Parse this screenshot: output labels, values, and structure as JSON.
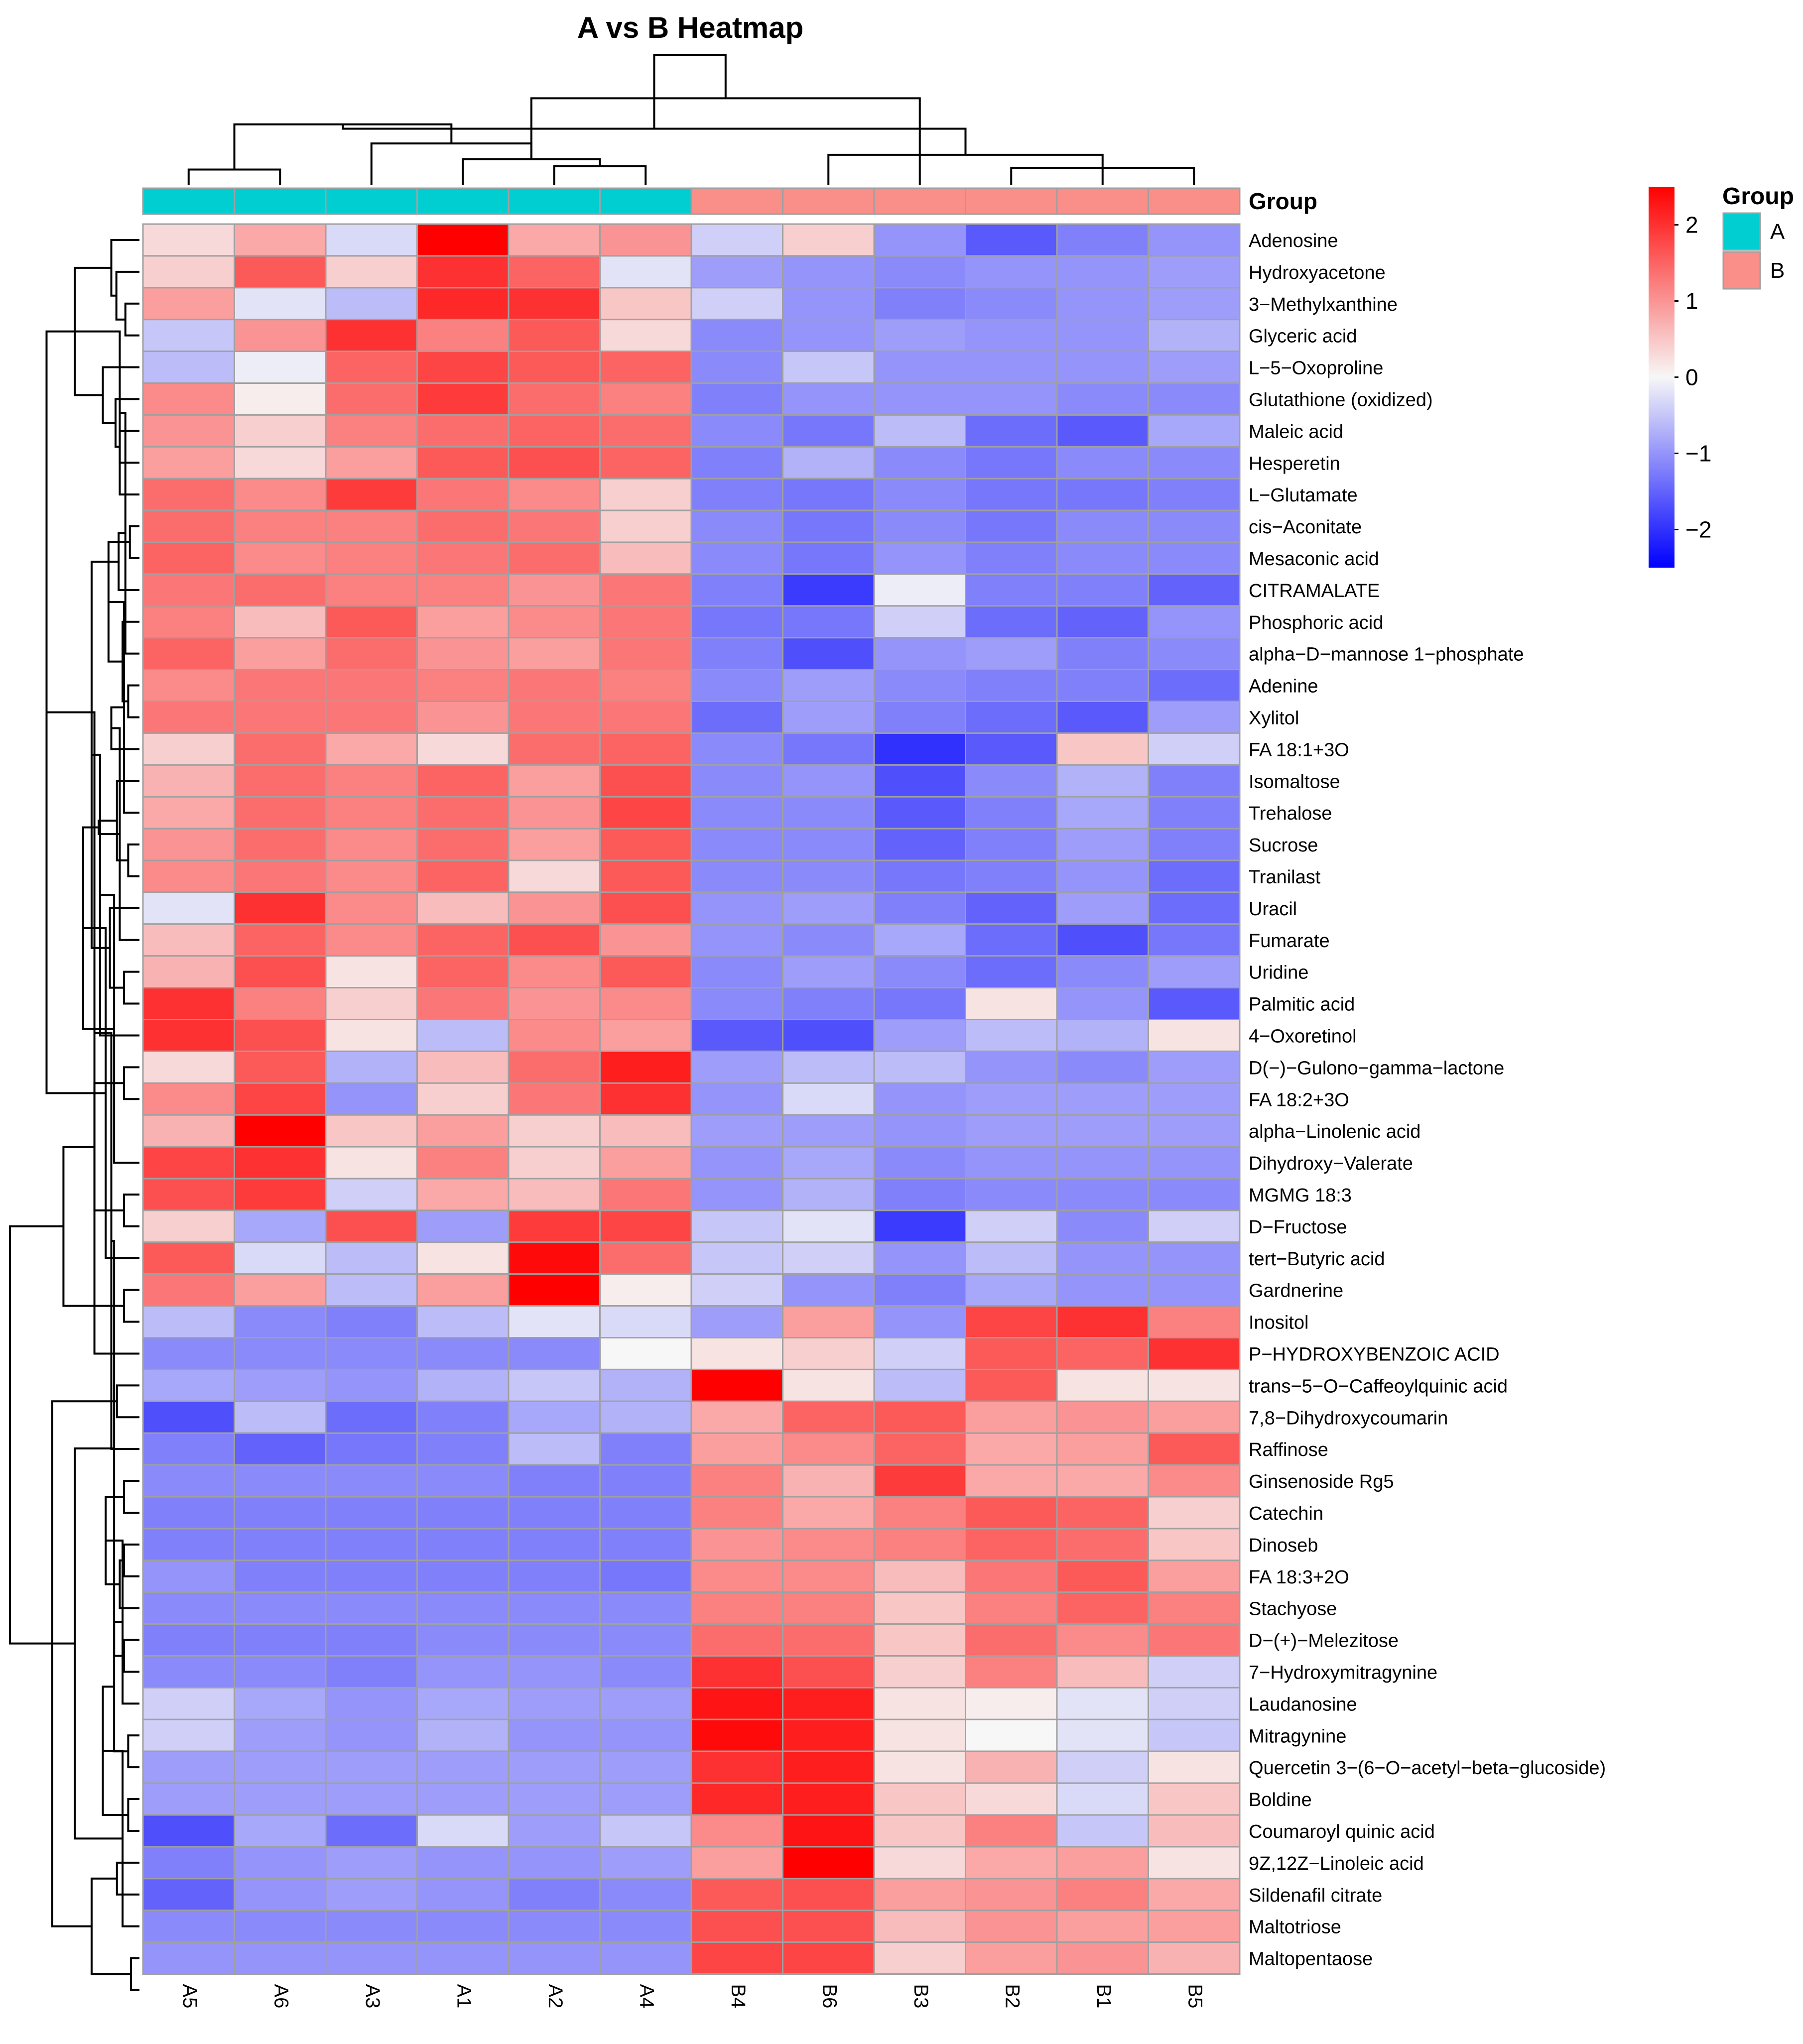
{
  "chart_data": {
    "type": "heatmap",
    "title": "A vs B Heatmap",
    "columns": [
      "A5",
      "A6",
      "A3",
      "A1",
      "A2",
      "A4",
      "B4",
      "B6",
      "B3",
      "B2",
      "B1",
      "B5"
    ],
    "column_groups": [
      "A",
      "A",
      "A",
      "A",
      "A",
      "A",
      "B",
      "B",
      "B",
      "B",
      "B",
      "B"
    ],
    "rows": [
      "Adenosine",
      "Hydroxyacetone",
      "3−Methylxanthine",
      "Glyceric acid",
      "L−5−Oxoproline",
      "Glutathione (oxidized)",
      "Maleic acid",
      "Hesperetin",
      "L−Glutamate",
      "cis−Aconitate",
      "Mesaconic acid",
      "CITRAMALATE",
      "Phosphoric acid",
      "alpha−D−mannose 1−phosphate",
      "Adenine",
      "Xylitol",
      "FA 18:1+3O",
      "Isomaltose",
      "Trehalose",
      "Sucrose",
      "Tranilast",
      "Uracil",
      "Fumarate",
      "Uridine",
      "Palmitic acid",
      "4−Oxoretinol",
      "D(−)−Gulono−gamma−lactone",
      "FA 18:2+3O",
      "alpha−Linolenic acid",
      "Dihydroxy−Valerate",
      "MGMG 18:3",
      "D−Fructose",
      "tert−Butyric acid",
      "Gardnerine",
      "Inositol",
      "P−HYDROXYBENZOIC ACID",
      "trans−5−O−Caffeoylquinic acid",
      "7,8−Dihydroxycoumarin",
      "Raffinose",
      "Ginsenoside Rg5",
      "Catechin",
      "Dinoseb",
      "FA 18:3+2O",
      "Stachyose",
      "D−(+)−Melezitose",
      "7−Hydroxymitragynine",
      "Laudanosine",
      "Mitragynine",
      "Quercetin 3−(6−O−acetyl−beta−glucoside)",
      "Boldine",
      "Coumaroyl quinic acid",
      "9Z,12Z−Linoleic acid",
      "Sildenafil citrate",
      "Maltotriose",
      "Maltopentaose"
    ],
    "values": [
      [
        0.3,
        0.8,
        -0.3,
        2.5,
        0.8,
        1.0,
        -0.4,
        0.4,
        -1.0,
        -1.6,
        -1.2,
        -1.0
      ],
      [
        0.4,
        1.6,
        0.4,
        2.0,
        1.5,
        -0.2,
        -0.9,
        -1.0,
        -1.1,
        -1.0,
        -1.0,
        -0.9
      ],
      [
        0.9,
        -0.2,
        -0.6,
        2.1,
        2.0,
        0.5,
        -0.4,
        -1.0,
        -1.2,
        -1.1,
        -1.0,
        -0.9
      ],
      [
        -0.5,
        1.0,
        2.0,
        1.2,
        1.6,
        0.3,
        -1.1,
        -1.0,
        -0.9,
        -1.0,
        -1.0,
        -0.7
      ],
      [
        -0.6,
        -0.1,
        1.5,
        1.8,
        1.6,
        1.5,
        -1.1,
        -0.5,
        -1.0,
        -1.0,
        -1.0,
        -0.9
      ],
      [
        1.1,
        0.1,
        1.4,
        1.9,
        1.4,
        1.2,
        -1.2,
        -1.0,
        -1.0,
        -1.0,
        -1.1,
        -1.1
      ],
      [
        1.0,
        0.4,
        1.2,
        1.4,
        1.5,
        1.4,
        -1.1,
        -1.3,
        -0.6,
        -1.4,
        -1.6,
        -0.8
      ],
      [
        0.9,
        0.3,
        0.9,
        1.6,
        1.7,
        1.5,
        -1.2,
        -0.7,
        -1.1,
        -1.3,
        -1.1,
        -1.1
      ],
      [
        1.4,
        1.1,
        1.9,
        1.3,
        1.1,
        0.4,
        -1.2,
        -1.3,
        -1.1,
        -1.3,
        -1.3,
        -1.2
      ],
      [
        1.4,
        1.2,
        1.2,
        1.4,
        1.3,
        0.4,
        -1.1,
        -1.3,
        -1.1,
        -1.3,
        -1.1,
        -1.1
      ],
      [
        1.5,
        1.1,
        1.2,
        1.3,
        1.4,
        0.6,
        -1.1,
        -1.3,
        -1.0,
        -1.2,
        -1.1,
        -1.1
      ],
      [
        1.3,
        1.4,
        1.2,
        1.2,
        1.0,
        1.3,
        -1.2,
        -1.9,
        -0.1,
        -1.2,
        -1.2,
        -1.5
      ],
      [
        1.2,
        0.6,
        1.6,
        0.9,
        1.1,
        1.3,
        -1.3,
        -1.3,
        -0.4,
        -1.4,
        -1.5,
        -1.0
      ],
      [
        1.5,
        0.9,
        1.4,
        1.0,
        0.9,
        1.3,
        -1.2,
        -1.7,
        -1.0,
        -0.9,
        -1.2,
        -1.1
      ],
      [
        1.1,
        1.3,
        1.3,
        1.2,
        1.3,
        1.2,
        -1.1,
        -0.9,
        -1.1,
        -1.2,
        -1.2,
        -1.4
      ],
      [
        1.3,
        1.3,
        1.3,
        1.0,
        1.3,
        1.3,
        -1.4,
        -0.9,
        -1.2,
        -1.4,
        -1.6,
        -0.9
      ],
      [
        0.4,
        1.4,
        0.8,
        0.3,
        1.4,
        1.5,
        -1.1,
        -1.3,
        -2.0,
        -1.6,
        0.5,
        -0.4
      ],
      [
        0.7,
        1.4,
        1.2,
        1.5,
        0.9,
        1.7,
        -1.1,
        -1.0,
        -1.7,
        -1.1,
        -0.7,
        -1.2
      ],
      [
        0.8,
        1.4,
        1.2,
        1.4,
        1.0,
        1.8,
        -1.1,
        -1.1,
        -1.6,
        -1.2,
        -0.8,
        -1.2
      ],
      [
        1.0,
        1.4,
        1.1,
        1.4,
        0.9,
        1.6,
        -1.1,
        -1.1,
        -1.5,
        -1.2,
        -0.9,
        -1.2
      ],
      [
        1.1,
        1.3,
        1.1,
        1.5,
        0.3,
        1.6,
        -1.1,
        -1.1,
        -1.3,
        -1.2,
        -1.0,
        -1.4
      ],
      [
        -0.2,
        2.0,
        1.1,
        0.6,
        1.0,
        1.7,
        -1.0,
        -0.9,
        -1.2,
        -1.5,
        -0.9,
        -1.4
      ],
      [
        0.6,
        1.5,
        1.1,
        1.5,
        1.7,
        1.0,
        -1.0,
        -1.1,
        -0.8,
        -1.4,
        -1.7,
        -1.3
      ],
      [
        0.7,
        1.7,
        0.2,
        1.5,
        1.1,
        1.6,
        -1.1,
        -0.9,
        -1.1,
        -1.4,
        -1.1,
        -0.9
      ],
      [
        2.0,
        1.2,
        0.4,
        1.3,
        1.0,
        1.1,
        -1.1,
        -1.2,
        -1.3,
        0.2,
        -1.0,
        -1.6
      ],
      [
        2.0,
        1.7,
        0.2,
        -0.6,
        1.1,
        0.9,
        -1.6,
        -1.7,
        -0.9,
        -0.6,
        -0.7,
        0.2
      ],
      [
        0.3,
        1.6,
        -0.7,
        0.6,
        1.4,
        2.2,
        -0.9,
        -0.6,
        -0.6,
        -1.0,
        -1.1,
        -0.9
      ],
      [
        1.1,
        1.8,
        -1.0,
        0.4,
        1.3,
        2.0,
        -1.0,
        -0.3,
        -1.0,
        -0.9,
        -0.9,
        -0.9
      ],
      [
        0.7,
        2.5,
        0.5,
        0.9,
        0.4,
        0.6,
        -0.9,
        -0.9,
        -1.0,
        -0.9,
        -0.9,
        -0.9
      ],
      [
        1.8,
        2.0,
        0.2,
        1.2,
        0.4,
        0.9,
        -1.0,
        -0.8,
        -1.1,
        -1.0,
        -1.0,
        -1.0
      ],
      [
        1.7,
        1.9,
        -0.4,
        0.8,
        0.6,
        1.3,
        -1.0,
        -0.7,
        -1.2,
        -1.1,
        -1.1,
        -1.1
      ],
      [
        0.4,
        -0.8,
        1.7,
        -0.9,
        1.9,
        1.8,
        -0.5,
        -0.2,
        -1.9,
        -0.4,
        -1.1,
        -0.4
      ],
      [
        1.6,
        -0.3,
        -0.6,
        0.2,
        2.4,
        1.4,
        -0.5,
        -0.4,
        -1.0,
        -0.6,
        -1.0,
        -1.0
      ],
      [
        1.3,
        0.9,
        -0.6,
        0.9,
        2.5,
        0.1,
        -0.4,
        -1.0,
        -1.2,
        -0.8,
        -1.0,
        -1.0
      ],
      [
        -0.6,
        -1.1,
        -1.2,
        -0.6,
        -0.2,
        -0.3,
        -0.9,
        0.9,
        -1.0,
        1.8,
        2.0,
        1.2
      ],
      [
        -1.1,
        -1.1,
        -1.1,
        -1.1,
        -1.1,
        0.0,
        0.2,
        0.4,
        -0.4,
        1.6,
        1.5,
        2.0
      ],
      [
        -0.8,
        -0.9,
        -1.0,
        -0.7,
        -0.5,
        -0.7,
        2.5,
        0.2,
        -0.6,
        1.6,
        0.2,
        0.2
      ],
      [
        -1.7,
        -0.6,
        -1.4,
        -1.2,
        -0.8,
        -0.7,
        0.8,
        1.5,
        1.6,
        0.9,
        1.0,
        0.9
      ],
      [
        -1.2,
        -1.5,
        -1.3,
        -1.2,
        -0.6,
        -1.2,
        0.9,
        1.1,
        1.5,
        0.8,
        0.9,
        1.6
      ],
      [
        -1.1,
        -1.1,
        -1.1,
        -1.1,
        -1.2,
        -1.2,
        1.2,
        0.7,
        1.9,
        0.8,
        0.8,
        1.1
      ],
      [
        -1.2,
        -1.2,
        -1.2,
        -1.2,
        -1.2,
        -1.2,
        1.2,
        0.8,
        1.2,
        1.6,
        1.5,
        0.4
      ],
      [
        -1.2,
        -1.2,
        -1.2,
        -1.2,
        -1.2,
        -1.2,
        1.0,
        1.1,
        1.2,
        1.5,
        1.4,
        0.5
      ],
      [
        -1.0,
        -1.2,
        -1.2,
        -1.2,
        -1.2,
        -1.3,
        1.1,
        1.1,
        0.6,
        1.3,
        1.6,
        0.9
      ],
      [
        -1.1,
        -1.1,
        -1.1,
        -1.1,
        -1.1,
        -1.1,
        1.2,
        1.2,
        0.5,
        1.2,
        1.5,
        1.2
      ],
      [
        -1.2,
        -1.2,
        -1.2,
        -1.1,
        -1.1,
        -1.1,
        1.4,
        1.4,
        0.5,
        1.4,
        1.1,
        1.3
      ],
      [
        -1.1,
        -1.1,
        -1.2,
        -1.0,
        -1.0,
        -1.1,
        2.0,
        1.7,
        0.4,
        1.2,
        0.6,
        -0.4
      ],
      [
        -0.4,
        -0.8,
        -1.0,
        -0.8,
        -0.9,
        -0.9,
        2.3,
        2.2,
        0.2,
        0.1,
        -0.2,
        -0.4
      ],
      [
        -0.4,
        -0.9,
        -1.0,
        -0.7,
        -1.0,
        -1.0,
        2.4,
        2.2,
        0.2,
        0.0,
        -0.2,
        -0.5
      ],
      [
        -0.9,
        -0.9,
        -0.9,
        -0.9,
        -0.9,
        -0.9,
        2.0,
        2.2,
        0.2,
        0.7,
        -0.4,
        0.2
      ],
      [
        -0.9,
        -0.9,
        -0.9,
        -0.9,
        -0.9,
        -0.9,
        2.1,
        2.2,
        0.5,
        0.3,
        -0.3,
        0.5
      ],
      [
        -1.7,
        -0.8,
        -1.4,
        -0.3,
        -0.9,
        -0.5,
        1.1,
        2.3,
        0.5,
        1.2,
        -0.5,
        0.6
      ],
      [
        -1.2,
        -1.0,
        -0.9,
        -1.0,
        -1.0,
        -0.9,
        0.9,
        2.5,
        0.3,
        0.8,
        0.9,
        0.2
      ],
      [
        -1.5,
        -1.0,
        -0.9,
        -1.0,
        -1.2,
        -1.1,
        1.6,
        1.7,
        0.9,
        1.0,
        1.2,
        0.8
      ],
      [
        -1.1,
        -1.1,
        -1.1,
        -1.1,
        -1.1,
        -1.1,
        1.7,
        1.7,
        0.6,
        1.0,
        0.9,
        0.9
      ],
      [
        -1.0,
        -1.0,
        -1.0,
        -1.0,
        -1.0,
        -1.0,
        1.8,
        1.8,
        0.4,
        0.9,
        1.0,
        0.7
      ]
    ],
    "color_scale": {
      "min": -2.5,
      "mid": 0,
      "max": 2.5,
      "low_color": "#0000ff",
      "mid_color": "#f7f7f7",
      "high_color": "#ff0000"
    },
    "legend_ticks": [
      "2",
      "1",
      "0",
      "−1",
      "−2"
    ],
    "legend_tick_values": [
      2,
      1,
      0,
      -1,
      -2
    ],
    "annotation_legend": {
      "title": "Group",
      "items": [
        {
          "label": "A",
          "color": "#00ced1"
        },
        {
          "label": "B",
          "color": "#fa8e89"
        }
      ]
    },
    "annotation_row_label": "Group",
    "column_merges": [
      [
        0,
        1,
        0.18
      ],
      [
        4,
        5,
        0.22
      ],
      [
        -2,
        3,
        0.3
      ],
      [
        -3,
        2,
        0.48
      ],
      [
        -1,
        -4,
        0.7
      ],
      [
        8,
        -3,
        1.0
      ],
      [
        11,
        9,
        0.2
      ],
      [
        10,
        -7,
        0.22
      ],
      [
        -8,
        7,
        0.35
      ],
      [
        -9,
        -5,
        0.65
      ],
      [
        -6,
        -10,
        1.5
      ]
    ],
    "row_merges": [
      [
        2,
        3,
        0.5
      ],
      [
        1,
        -1,
        0.82
      ],
      [
        0,
        -2,
        1.0
      ],
      [
        6,
        7,
        0.7
      ],
      [
        5,
        -4,
        0.85
      ],
      [
        4,
        -5,
        1.3
      ],
      [
        -3,
        -6,
        2.3
      ],
      [
        9,
        10,
        0.34
      ],
      [
        8,
        -7,
        0.7
      ],
      [
        14,
        15,
        0.4
      ],
      [
        13,
        -9,
        0.5
      ],
      [
        12,
        -10,
        0.6
      ],
      [
        11,
        -11,
        0.74
      ],
      [
        -8,
        -12,
        1.1
      ],
      [
        19,
        20,
        0.4
      ],
      [
        18,
        -14,
        0.55
      ],
      [
        17,
        -15,
        0.8
      ],
      [
        16,
        -16,
        1.0
      ],
      [
        23,
        24,
        0.55
      ],
      [
        22,
        -18,
        0.7
      ],
      [
        21,
        -19,
        1.05
      ],
      [
        -17,
        -20,
        1.45
      ],
      [
        -13,
        -21,
        1.7
      ],
      [
        26,
        27,
        0.55
      ],
      [
        25,
        -23,
        1.4
      ],
      [
        30,
        31,
        0.55
      ],
      [
        29,
        -25,
        0.9
      ],
      [
        -24,
        -26,
        1.6
      ],
      [
        -22,
        -27,
        2.0
      ],
      [
        33,
        34,
        0.55
      ],
      [
        32,
        -29,
        1.2
      ],
      [
        -28,
        -30,
        2.7
      ],
      [
        -7,
        -31,
        3.3
      ],
      [
        36,
        37,
        0.8
      ],
      [
        35,
        -33,
        1.6
      ],
      [
        39,
        40,
        0.55
      ],
      [
        38,
        -35,
        1.0
      ],
      [
        41,
        42,
        0.55
      ],
      [
        44,
        45,
        0.55
      ],
      [
        43,
        -38,
        0.7
      ],
      [
        -37,
        -39,
        0.9
      ],
      [
        -36,
        -40,
        1.2
      ],
      [
        47,
        48,
        0.4
      ],
      [
        46,
        -42,
        0.6
      ],
      [
        49,
        50,
        0.4
      ],
      [
        -43,
        -44,
        0.9
      ],
      [
        51,
        52,
        0.8
      ],
      [
        -45,
        -46,
        1.3
      ],
      [
        54,
        55,
        0.3
      ],
      [
        53,
        -48,
        0.6
      ],
      [
        -47,
        -49,
        1.7
      ],
      [
        -41,
        -50,
        2.3
      ],
      [
        -34,
        -51,
        3.1
      ],
      [
        -32,
        -52,
        4.6
      ]
    ]
  }
}
